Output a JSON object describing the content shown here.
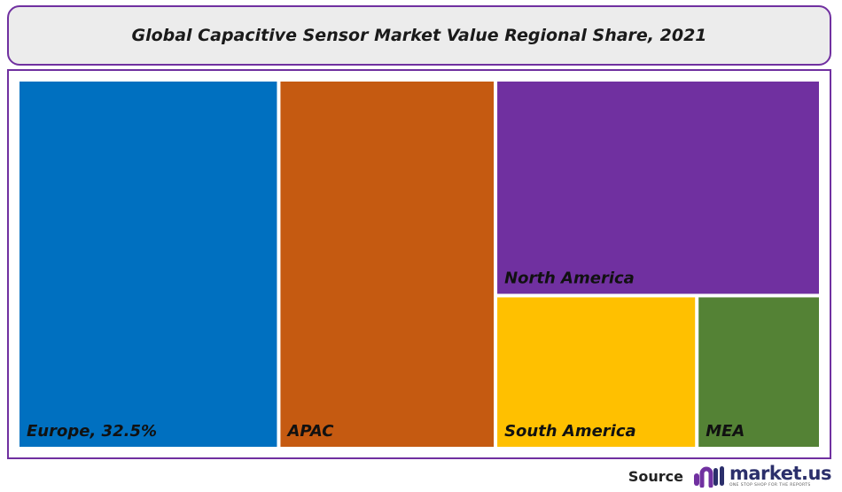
{
  "title": "Global Capacitive Sensor Market Value Regional Share, 2021",
  "source_label": "Source",
  "logo": {
    "name": "market.us",
    "tagline": "ONE STOP SHOP FOR THE REPORTS",
    "icon": "market-us-logo-icon"
  },
  "chart_data": {
    "type": "treemap",
    "title": "Global Capacitive Sensor Market Value Regional Share, 2021",
    "items": [
      {
        "label": "Europe, 32.5%",
        "region": "Europe",
        "value": 32.5,
        "color": "#0070c0"
      },
      {
        "label": "APAC",
        "region": "APAC",
        "value": 27.0,
        "color": "#c55a11"
      },
      {
        "label": "North America",
        "region": "North America",
        "value": 23.7,
        "color": "#7030a0"
      },
      {
        "label": "South America",
        "region": "South America",
        "value": 10.4,
        "color": "#ffc000"
      },
      {
        "label": "MEA",
        "region": "MEA",
        "value": 6.4,
        "color": "#548235"
      }
    ]
  }
}
